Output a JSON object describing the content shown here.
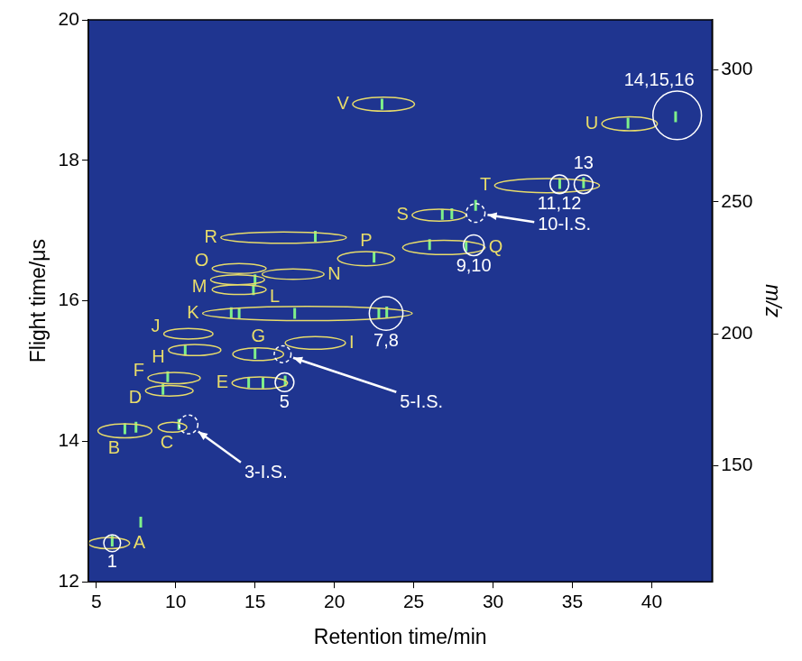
{
  "chart_data": {
    "type": "scatter",
    "x_label": "Retention time/min",
    "y_label": "Flight time/μs",
    "y2_label": "m/z",
    "xlim": [
      4.5,
      43.8
    ],
    "xticks": [
      5,
      10,
      15,
      20,
      25,
      30,
      35,
      40
    ],
    "ylim": [
      12,
      20
    ],
    "yticks": [
      12,
      14,
      16,
      18,
      20
    ],
    "y2lim": [
      106,
      319
    ],
    "y2ticks": [
      150,
      200,
      250,
      300
    ],
    "grid": false,
    "series": [
      {
        "color": "#7ef08a",
        "marker": "line",
        "x": [
          6.0,
          7.8,
          6.8,
          7.5,
          10.2,
          9.2,
          9.5,
          10.6,
          14.6,
          15.5,
          15.0,
          16.9,
          13.5,
          14.0,
          17.5,
          22.8,
          23.3,
          14.9,
          15.0,
          18.8,
          22.5,
          26.8,
          27.4,
          28.9,
          26.0,
          28.3,
          34.2,
          35.7,
          41.5,
          38.5,
          23.0
        ],
        "values": [
          12.58,
          12.85,
          14.18,
          14.2,
          14.24,
          14.74,
          14.92,
          15.3,
          14.84,
          14.83,
          15.25,
          14.86,
          15.83,
          15.82,
          15.82,
          15.82,
          15.84,
          16.16,
          16.3,
          16.92,
          16.62,
          17.23,
          17.24,
          17.36,
          16.8,
          16.78,
          17.67,
          17.68,
          18.62,
          18.53,
          18.8
        ]
      }
    ],
    "regions": [
      {
        "label": "A",
        "x": 5.8,
        "y": 12.55,
        "width": 2.6,
        "height": 0.16,
        "color": "#e8dc6a"
      },
      {
        "label": "B",
        "x": 6.8,
        "y": 14.15,
        "width": 3.4,
        "height": 0.2,
        "color": "#e8dc6a"
      },
      {
        "label": "C",
        "x": 9.8,
        "y": 14.2,
        "width": 1.8,
        "height": 0.14,
        "color": "#e8dc6a"
      },
      {
        "label": "D",
        "x": 9.6,
        "y": 14.72,
        "width": 3.0,
        "height": 0.15,
        "color": "#e8dc6a"
      },
      {
        "label": "E",
        "x": 15.3,
        "y": 14.83,
        "width": 3.5,
        "height": 0.17,
        "color": "#e8dc6a"
      },
      {
        "label": "F",
        "x": 9.9,
        "y": 14.9,
        "width": 3.3,
        "height": 0.16,
        "color": "#e8dc6a"
      },
      {
        "label": "G",
        "x": 15.2,
        "y": 15.24,
        "width": 3.2,
        "height": 0.18,
        "color": "#e8dc6a"
      },
      {
        "label": "H",
        "x": 11.2,
        "y": 15.3,
        "width": 3.3,
        "height": 0.16,
        "color": "#e8dc6a"
      },
      {
        "label": "I",
        "x": 18.8,
        "y": 15.4,
        "width": 3.8,
        "height": 0.18,
        "color": "#e8dc6a"
      },
      {
        "label": "J",
        "x": 10.8,
        "y": 15.53,
        "width": 3.1,
        "height": 0.15,
        "color": "#e8dc6a"
      },
      {
        "label": "K",
        "x": 18.3,
        "y": 15.82,
        "width": 13.2,
        "height": 0.2,
        "color": "#e8dc6a"
      },
      {
        "label": "L",
        "x": 14.0,
        "y": 16.16,
        "width": 3.4,
        "height": 0.14,
        "color": "#e8dc6a"
      },
      {
        "label": "M",
        "x": 13.9,
        "y": 16.3,
        "width": 3.4,
        "height": 0.14,
        "color": "#e8dc6a"
      },
      {
        "label": "N",
        "x": 17.4,
        "y": 16.38,
        "width": 3.9,
        "height": 0.15,
        "color": "#e8dc6a"
      },
      {
        "label": "O",
        "x": 14.0,
        "y": 16.46,
        "width": 3.4,
        "height": 0.14,
        "color": "#e8dc6a"
      },
      {
        "label": "P",
        "x": 22.0,
        "y": 16.6,
        "width": 3.6,
        "height": 0.2,
        "color": "#e8dc6a"
      },
      {
        "label": "Q",
        "x": 26.9,
        "y": 16.76,
        "width": 5.2,
        "height": 0.2,
        "color": "#e8dc6a"
      },
      {
        "label": "R",
        "x": 16.8,
        "y": 16.9,
        "width": 7.9,
        "height": 0.16,
        "color": "#e8dc6a"
      },
      {
        "label": "S",
        "x": 26.6,
        "y": 17.22,
        "width": 3.4,
        "height": 0.17,
        "color": "#e8dc6a"
      },
      {
        "label": "T",
        "x": 33.4,
        "y": 17.64,
        "width": 6.6,
        "height": 0.2,
        "color": "#e8dc6a"
      },
      {
        "label": "U",
        "x": 38.6,
        "y": 18.52,
        "width": 3.5,
        "height": 0.2,
        "color": "#e8dc6a"
      },
      {
        "label": "V",
        "x": 23.1,
        "y": 18.8,
        "width": 3.9,
        "height": 0.2,
        "color": "#e8dc6a"
      }
    ],
    "peaks": [
      {
        "label": "1",
        "x": 6.0,
        "y": 12.55,
        "radius": 0.53,
        "color": "#ffffff",
        "line_style": "solid"
      },
      {
        "label": "5",
        "x": 16.86,
        "y": 14.84,
        "radius": 0.59,
        "color": "#ffffff",
        "line_style": "solid"
      },
      {
        "label": "7,8",
        "x": 23.26,
        "y": 15.82,
        "radius": 1.06,
        "color": "#ffffff",
        "line_style": "solid"
      },
      {
        "label": "9,10",
        "x": 28.78,
        "y": 16.79,
        "radius": 0.65,
        "color": "#ffffff",
        "line_style": "solid"
      },
      {
        "label": "11,12",
        "x": 34.18,
        "y": 17.66,
        "radius": 0.59,
        "color": "#ffffff",
        "line_style": "solid"
      },
      {
        "label": "13",
        "x": 35.7,
        "y": 17.66,
        "radius": 0.59,
        "color": "#ffffff",
        "line_style": "solid"
      },
      {
        "label": "14,15,16",
        "x": 41.6,
        "y": 18.64,
        "radius": 1.53,
        "color": "#ffffff",
        "line_style": "solid"
      }
    ],
    "internal_standards": [
      {
        "label": "3-I.S.",
        "x": 10.81,
        "y": 14.24,
        "radius": 0.59,
        "color": "#ffffff",
        "line_style": "dashed"
      },
      {
        "label": "5-I.S.",
        "x": 16.74,
        "y": 15.24,
        "radius": 0.53,
        "color": "#ffffff",
        "line_style": "dashed"
      },
      {
        "label": "10-I.S.",
        "x": 28.9,
        "y": 17.25,
        "radius": 0.59,
        "color": "#ffffff",
        "line_style": "dashed"
      }
    ]
  }
}
